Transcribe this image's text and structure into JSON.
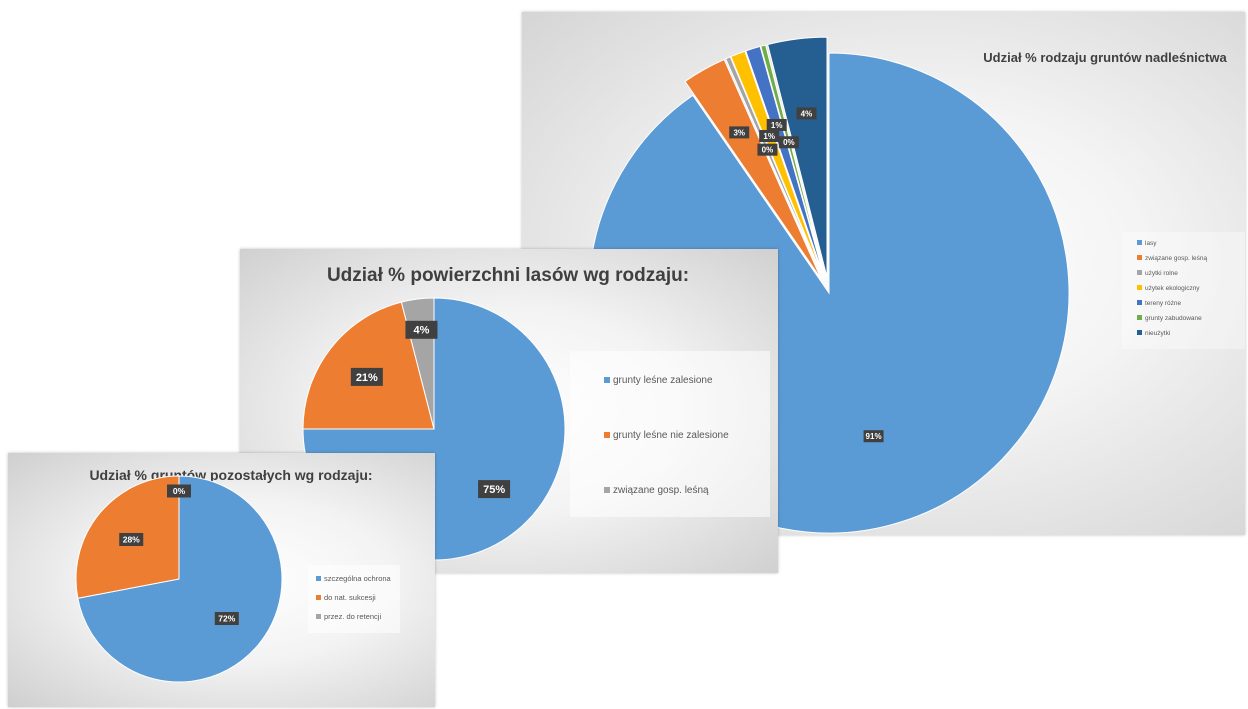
{
  "chart_data": [
    {
      "type": "pie",
      "title": "Udział % rodzaju gruntów nadleśnictwa",
      "categories": [
        "lasy",
        "związane gosp. leśną",
        "użytki rolne",
        "użytek ekologiczny",
        "tereny różne",
        "grunty zabudowane",
        "nieużytki"
      ],
      "values": [
        91,
        3,
        0,
        1,
        1,
        0,
        4
      ],
      "data_labels": [
        "91%",
        "3%",
        "0%",
        "1%",
        "1%",
        "0%",
        "4%"
      ],
      "colors": [
        "#5b9bd5",
        "#ed7d31",
        "#a5a5a5",
        "#ffc000",
        "#4472c4",
        "#70ad47",
        "#255e91"
      ],
      "exploded": [
        false,
        true,
        true,
        true,
        true,
        true,
        true
      ],
      "legend_position": "right"
    },
    {
      "type": "pie",
      "title": "Udział % powierzchni lasów wg rodzaju:",
      "categories": [
        "grunty leśne zalesione",
        "grunty leśne nie zalesione",
        "związane  gosp. leśną"
      ],
      "values": [
        75,
        21,
        4
      ],
      "data_labels": [
        "75%",
        "21%",
        "4%"
      ],
      "colors": [
        "#5b9bd5",
        "#ed7d31",
        "#a5a5a5"
      ],
      "legend_position": "right"
    },
    {
      "type": "pie",
      "title": "Udział % gruntów pozostałych wg rodzaju:",
      "categories": [
        "szczególna ochrona",
        "do nat. sukcesji",
        "przez. do retencji"
      ],
      "values": [
        72,
        28,
        0
      ],
      "data_labels": [
        "72%",
        "28%",
        "0%"
      ],
      "colors": [
        "#5b9bd5",
        "#ed7d31",
        "#a5a5a5"
      ],
      "legend_position": "right"
    }
  ]
}
